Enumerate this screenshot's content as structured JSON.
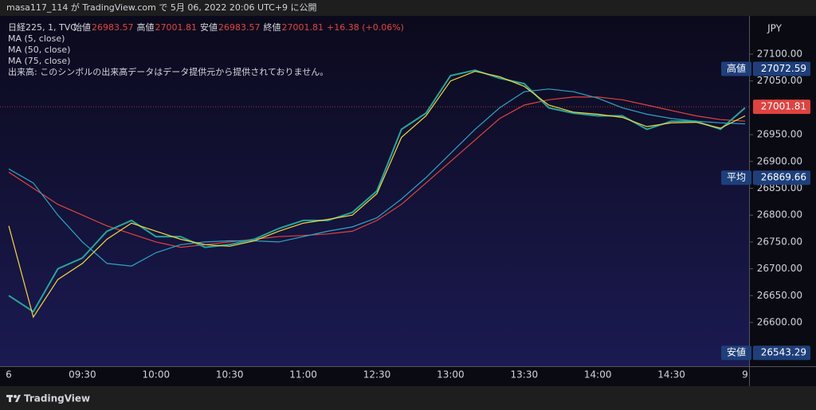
{
  "header": "masa117_114 が TradingView.com で 5月 06, 2022 20:06 UTC+9 に公開",
  "footer": "TradingView",
  "chart_data": {
    "type": "line",
    "symbol": "日経225, 1, TVC",
    "ohlc": [
      {
        "label": "始値",
        "value": 26983.57
      },
      {
        "label": "高値",
        "value": 27001.81
      },
      {
        "label": "安値",
        "value": 26983.57
      },
      {
        "label": "終値",
        "value": 27001.81
      }
    ],
    "change": "+16.38 (+0.06%)",
    "volume_note": "出来高: このシンボルの出来高データはデータ提供元から提供されておりません。",
    "currency": "JPY",
    "categories": [
      "6",
      null,
      null,
      "09:30",
      null,
      null,
      "10:00",
      null,
      null,
      "10:30",
      null,
      null,
      "11:00",
      null,
      null,
      "12:30",
      null,
      null,
      "13:00",
      null,
      null,
      "13:30",
      null,
      null,
      "14:00",
      null,
      null,
      "14:30",
      null,
      null,
      "9"
    ],
    "series": [
      {
        "name": "日経225",
        "color": "#26a69a",
        "values": [
          26650,
          26620,
          26700,
          26720,
          26770,
          26790,
          26760,
          26760,
          26740,
          26745,
          26755,
          26775,
          26790,
          26790,
          26805,
          26845,
          26960,
          26990,
          27060,
          27070,
          27055,
          27045,
          27000,
          26990,
          26985,
          26985,
          26960,
          26975,
          26975,
          26960,
          27000
        ]
      },
      {
        "name": "MA (5, close)",
        "color": "#f5d63d",
        "values": [
          26780,
          26610,
          26680,
          26710,
          26755,
          26785,
          26770,
          26755,
          26745,
          26742,
          26752,
          26770,
          26785,
          26792,
          26800,
          26840,
          26945,
          26985,
          27050,
          27068,
          27058,
          27040,
          27005,
          26992,
          26988,
          26982,
          26965,
          26972,
          26973,
          26962,
          26985
        ]
      },
      {
        "name": "MA (50, close)",
        "color": "#2aa5c4",
        "values": [
          26886,
          26860,
          26800,
          26750,
          26710,
          26705,
          26730,
          26745,
          26750,
          26752,
          26752,
          26750,
          26760,
          26770,
          26778,
          26795,
          26830,
          26870,
          26915,
          26960,
          27000,
          27030,
          27035,
          27030,
          27018,
          27000,
          26988,
          26980,
          26975,
          26972,
          26970
        ]
      },
      {
        "name": "MA (75, close)",
        "color": "#e0433f",
        "values": [
          26880,
          26850,
          26820,
          26800,
          26780,
          26765,
          26750,
          26740,
          26745,
          26750,
          26755,
          26760,
          26762,
          26765,
          26770,
          26790,
          26820,
          26860,
          26900,
          26940,
          26980,
          27005,
          27015,
          27020,
          27020,
          27015,
          27005,
          26995,
          26985,
          26978,
          26975
        ]
      }
    ],
    "price_labels": [
      {
        "label": "高値",
        "value": 27072.59,
        "color": "#1e3f7a"
      },
      {
        "label": "平均",
        "value": 26869.66,
        "color": "#1e3f7a"
      },
      {
        "label": "安値",
        "value": 26543.29,
        "color": "#1e3f7a"
      }
    ],
    "last_price_color": "#e0433f",
    "ylim": [
      26518.4,
      27171.2
    ],
    "yticks": [
      {
        "value": 26600,
        "label": "26600.00"
      },
      {
        "value": 26650,
        "label": "26650.00"
      },
      {
        "value": 26700,
        "label": "26700.00"
      },
      {
        "value": 26750,
        "label": "26750.00"
      },
      {
        "value": 26800,
        "label": "26800.00"
      },
      {
        "value": 26850,
        "label": "26850.00"
      },
      {
        "value": 26900,
        "label": "26900.00"
      },
      {
        "value": 26950,
        "label": "26950.00"
      },
      {
        "value": 27050,
        "label": "27050.00"
      },
      {
        "value": 27100,
        "label": "27100.00"
      }
    ]
  }
}
